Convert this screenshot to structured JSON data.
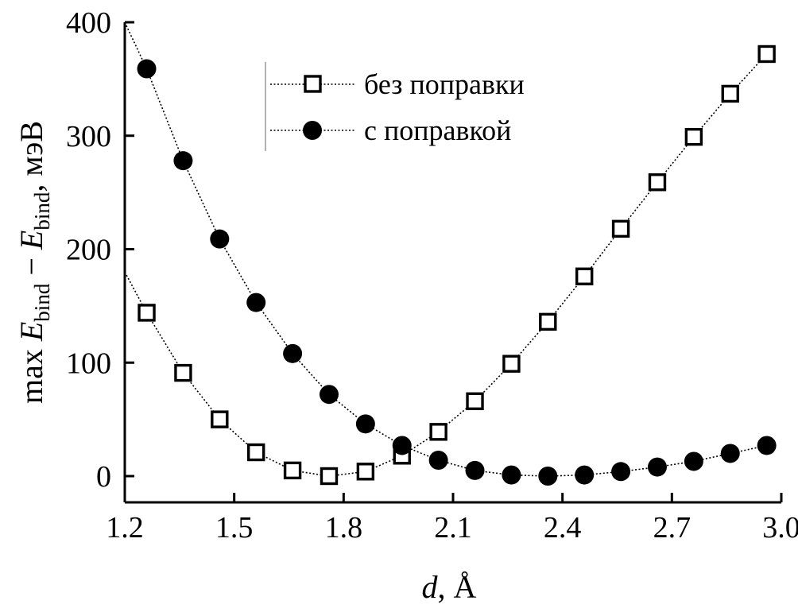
{
  "chart_data": {
    "type": "line",
    "x_axis": {
      "label_italic": "d",
      "label_rest": ", Å",
      "range": [
        1.2,
        3.0
      ],
      "ticks": [
        1.2,
        1.5,
        1.8,
        2.1,
        2.4,
        2.7,
        3.0
      ],
      "tick_labels": [
        "1.2",
        "1.5",
        "1.8",
        "2.1",
        "2.4",
        "2.7",
        "3.0"
      ]
    },
    "y_axis": {
      "label_parts": {
        "prefix": "max ",
        "E1": "E",
        "sub1": "bind",
        "minus": " − ",
        "E2": "E",
        "sub2": "bind",
        "suffix": ", мэВ"
      },
      "range": [
        0,
        400
      ],
      "ticks": [
        0,
        100,
        200,
        300,
        400
      ],
      "tick_labels": [
        "0",
        "100",
        "200",
        "300",
        "400"
      ]
    },
    "legend_position": "top-center",
    "grid": false,
    "series": [
      {
        "name": "без поправки",
        "marker": "open-square",
        "x": [
          1.26,
          1.36,
          1.46,
          1.56,
          1.66,
          1.76,
          1.86,
          1.96,
          2.06,
          2.16,
          2.26,
          2.36,
          2.46,
          2.56,
          2.66,
          2.76,
          2.86,
          2.96
        ],
        "y": [
          144,
          91,
          50,
          21,
          5,
          0,
          4,
          18,
          39,
          66,
          99,
          136,
          176,
          218,
          259,
          299,
          337,
          372
        ]
      },
      {
        "name": "с поправкой",
        "marker": "filled-circle",
        "x": [
          1.26,
          1.36,
          1.46,
          1.56,
          1.66,
          1.76,
          1.86,
          1.96,
          2.06,
          2.16,
          2.26,
          2.36,
          2.46,
          2.56,
          2.66,
          2.76,
          2.86,
          2.96
        ],
        "y": [
          359,
          278,
          209,
          153,
          108,
          72,
          46,
          27,
          14,
          5,
          1,
          0,
          1,
          4,
          8,
          13,
          20,
          27
        ]
      }
    ]
  }
}
